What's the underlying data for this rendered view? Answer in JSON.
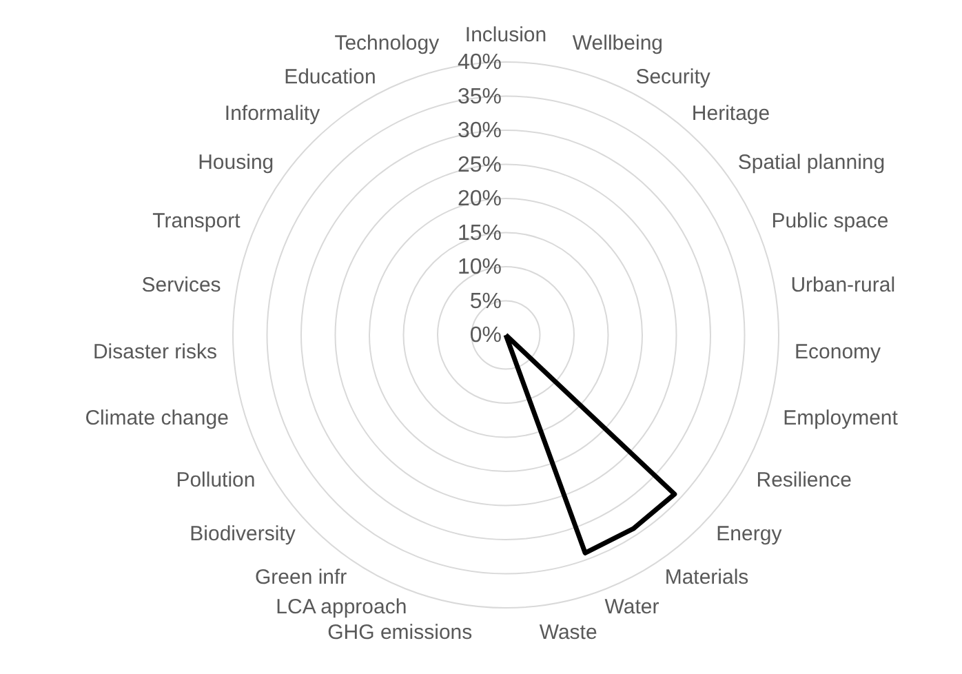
{
  "chart_data": {
    "type": "radar",
    "categories": [
      "Inclusion",
      "Wellbeing",
      "Security",
      "Heritage",
      "Spatial planning",
      "Public space",
      "Urban-rural",
      "Economy",
      "Employment",
      "Resilience",
      "Energy",
      "Materials",
      "Water",
      "Waste",
      "GHG emissions",
      "LCA approach",
      "Green infr",
      "Biodiversity",
      "Pollution",
      "Climate change",
      "Disaster risks",
      "Services",
      "Transport",
      "Housing",
      "Informality",
      "Education",
      "Technology"
    ],
    "series": [
      {
        "color": "#000000",
        "values": [
          0,
          0,
          0,
          0,
          0,
          0,
          0,
          0,
          0,
          0,
          34,
          34,
          34,
          0,
          0,
          0,
          0,
          0,
          0,
          0,
          0,
          0,
          0,
          0,
          0,
          0,
          0
        ]
      }
    ],
    "ylim": [
      0,
      40
    ],
    "yticks": [
      {
        "value": 0,
        "label": "0%"
      },
      {
        "value": 5,
        "label": "5%"
      },
      {
        "value": 10,
        "label": "10%"
      },
      {
        "value": 15,
        "label": "15%"
      },
      {
        "value": 20,
        "label": "20%"
      },
      {
        "value": 25,
        "label": "25%"
      },
      {
        "value": 30,
        "label": "30%"
      },
      {
        "value": 35,
        "label": "35%"
      },
      {
        "value": 40,
        "label": "40%"
      }
    ],
    "grid": true,
    "marker": "none",
    "line_style": "solid"
  }
}
